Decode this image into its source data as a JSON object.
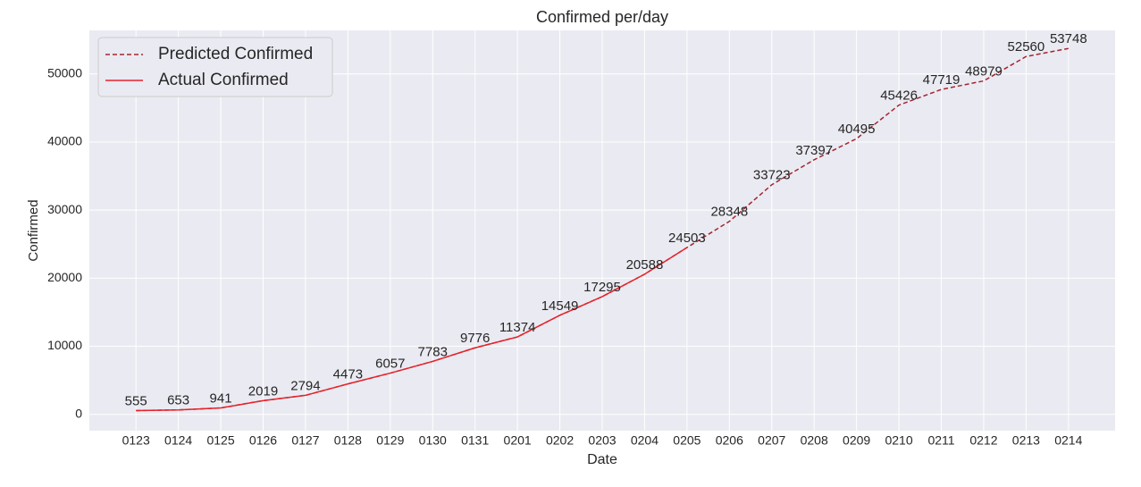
{
  "chart_data": {
    "type": "line",
    "title": "Confirmed per/day",
    "x_label": "Date",
    "y_label": "Confirmed",
    "categories": [
      "0123",
      "0124",
      "0125",
      "0126",
      "0127",
      "0128",
      "0129",
      "0130",
      "0131",
      "0201",
      "0202",
      "0203",
      "0204",
      "0205",
      "0206",
      "0207",
      "0208",
      "0209",
      "0210",
      "0211",
      "0212",
      "0213",
      "0214"
    ],
    "series": [
      {
        "name": "Predicted Confirmed",
        "color": "#a3262e",
        "dashed": true,
        "values": [
          555,
          653,
          941,
          2019,
          2794,
          4473,
          6057,
          7783,
          9776,
          11374,
          14549,
          17295,
          20588,
          24503,
          28348,
          33723,
          37397,
          40495,
          45426,
          47719,
          48979,
          52560,
          53748
        ]
      },
      {
        "name": "Actual Confirmed",
        "color": "#e8232a",
        "dashed": false,
        "values": [
          555,
          653,
          941,
          2019,
          2794,
          4473,
          6057,
          7783,
          9776,
          11374,
          14549,
          17295,
          20588,
          24503,
          null,
          null,
          null,
          null,
          null,
          null,
          null,
          null,
          null
        ]
      }
    ],
    "ylim": [
      -2400,
      56400
    ],
    "yticks": [
      0,
      10000,
      20000,
      30000,
      40000,
      50000
    ],
    "grid": true,
    "legend": "upper left"
  }
}
